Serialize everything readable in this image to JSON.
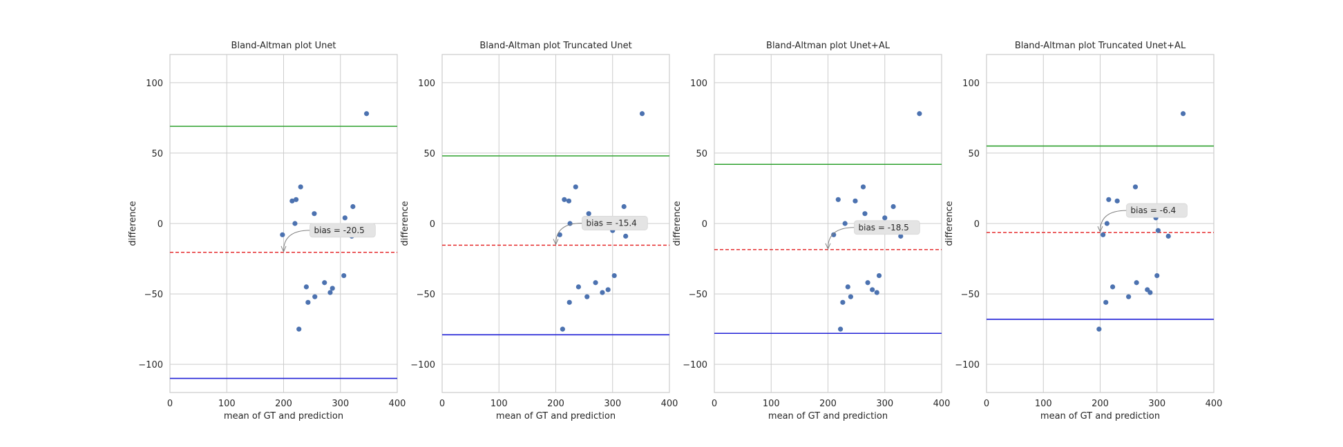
{
  "chart_data": [
    {
      "type": "scatter",
      "title": "Bland-Altman plot Unet",
      "xlabel": "mean of GT and prediction",
      "ylabel": "difference",
      "xlim": [
        0,
        400
      ],
      "ylim": [
        -120,
        120
      ],
      "xticks": [
        0,
        100,
        200,
        300,
        400
      ],
      "yticks": [
        -100,
        -50,
        0,
        50,
        100
      ],
      "points": [
        [
          198,
          -8
        ],
        [
          215,
          16
        ],
        [
          220,
          0
        ],
        [
          222,
          17
        ],
        [
          230,
          26
        ],
        [
          227,
          -75
        ],
        [
          240,
          -45
        ],
        [
          243,
          -56
        ],
        [
          255,
          -52
        ],
        [
          254,
          7
        ],
        [
          272,
          -42
        ],
        [
          282,
          -49
        ],
        [
          286,
          -46
        ],
        [
          306,
          -37
        ],
        [
          308,
          4
        ],
        [
          320,
          -9
        ],
        [
          322,
          12
        ],
        [
          346,
          78
        ]
      ],
      "upper_loa": 69,
      "lower_loa": -110,
      "bias": -20.5,
      "annotation": "bias = -20.5"
    },
    {
      "type": "scatter",
      "title": "Bland-Altman plot Truncated Unet",
      "xlabel": "mean of GT and prediction",
      "ylabel": "difference",
      "xlim": [
        0,
        400
      ],
      "ylim": [
        -120,
        120
      ],
      "xticks": [
        0,
        100,
        200,
        300,
        400
      ],
      "yticks": [
        -100,
        -50,
        0,
        50,
        100
      ],
      "points": [
        [
          207,
          -8
        ],
        [
          215,
          17
        ],
        [
          223,
          16
        ],
        [
          225,
          0
        ],
        [
          235,
          26
        ],
        [
          212,
          -75
        ],
        [
          224,
          -56
        ],
        [
          240,
          -45
        ],
        [
          255,
          -52
        ],
        [
          258,
          7
        ],
        [
          270,
          -42
        ],
        [
          282,
          -49
        ],
        [
          292,
          -47
        ],
        [
          300,
          -5
        ],
        [
          303,
          -37
        ],
        [
          320,
          12
        ],
        [
          323,
          -9
        ],
        [
          352,
          78
        ]
      ],
      "upper_loa": 48,
      "lower_loa": -79,
      "bias": -15.4,
      "annotation": "bias = -15.4"
    },
    {
      "type": "scatter",
      "title": "Bland-Altman plot Unet+AL",
      "xlabel": "mean of GT and prediction",
      "ylabel": "difference",
      "xlim": [
        0,
        400
      ],
      "ylim": [
        -120,
        120
      ],
      "xticks": [
        0,
        100,
        200,
        300,
        400
      ],
      "yticks": [
        -100,
        -50,
        0,
        50,
        100
      ],
      "points": [
        [
          210,
          -8
        ],
        [
          218,
          17
        ],
        [
          222,
          -75
        ],
        [
          226,
          -56
        ],
        [
          230,
          0
        ],
        [
          235,
          -45
        ],
        [
          240,
          -52
        ],
        [
          248,
          16
        ],
        [
          262,
          26
        ],
        [
          265,
          7
        ],
        [
          270,
          -42
        ],
        [
          278,
          -47
        ],
        [
          286,
          -49
        ],
        [
          290,
          -37
        ],
        [
          300,
          4
        ],
        [
          315,
          12
        ],
        [
          328,
          -9
        ],
        [
          361,
          78
        ]
      ],
      "upper_loa": 42,
      "lower_loa": -78,
      "bias": -18.5,
      "annotation": "bias = -18.5"
    },
    {
      "type": "scatter",
      "title": "Bland-Altman plot Truncated Unet+AL",
      "xlabel": "mean of GT and prediction",
      "ylabel": "difference",
      "xlim": [
        0,
        400
      ],
      "ylim": [
        -120,
        120
      ],
      "xticks": [
        0,
        100,
        200,
        300,
        400
      ],
      "yticks": [
        -100,
        -50,
        0,
        50,
        100
      ],
      "points": [
        [
          198,
          -75
        ],
        [
          205,
          -8
        ],
        [
          210,
          -56
        ],
        [
          212,
          0
        ],
        [
          215,
          17
        ],
        [
          222,
          -45
        ],
        [
          230,
          16
        ],
        [
          250,
          -52
        ],
        [
          262,
          26
        ],
        [
          264,
          -42
        ],
        [
          283,
          -47
        ],
        [
          288,
          -49
        ],
        [
          298,
          4
        ],
        [
          300,
          -37
        ],
        [
          302,
          -5
        ],
        [
          320,
          -9
        ],
        [
          346,
          78
        ]
      ],
      "upper_loa": 55,
      "lower_loa": -68,
      "bias": -6.4,
      "annotation": "bias = -6.4"
    }
  ],
  "colors": {
    "points": "#4c72b0",
    "upper_loa": "#2ca02c",
    "lower_loa": "#1f1fd6",
    "bias": "#e31a1c",
    "grid": "#cccccc",
    "axes_edge": "#cccccc",
    "annot_box": "#e4e4e4"
  }
}
